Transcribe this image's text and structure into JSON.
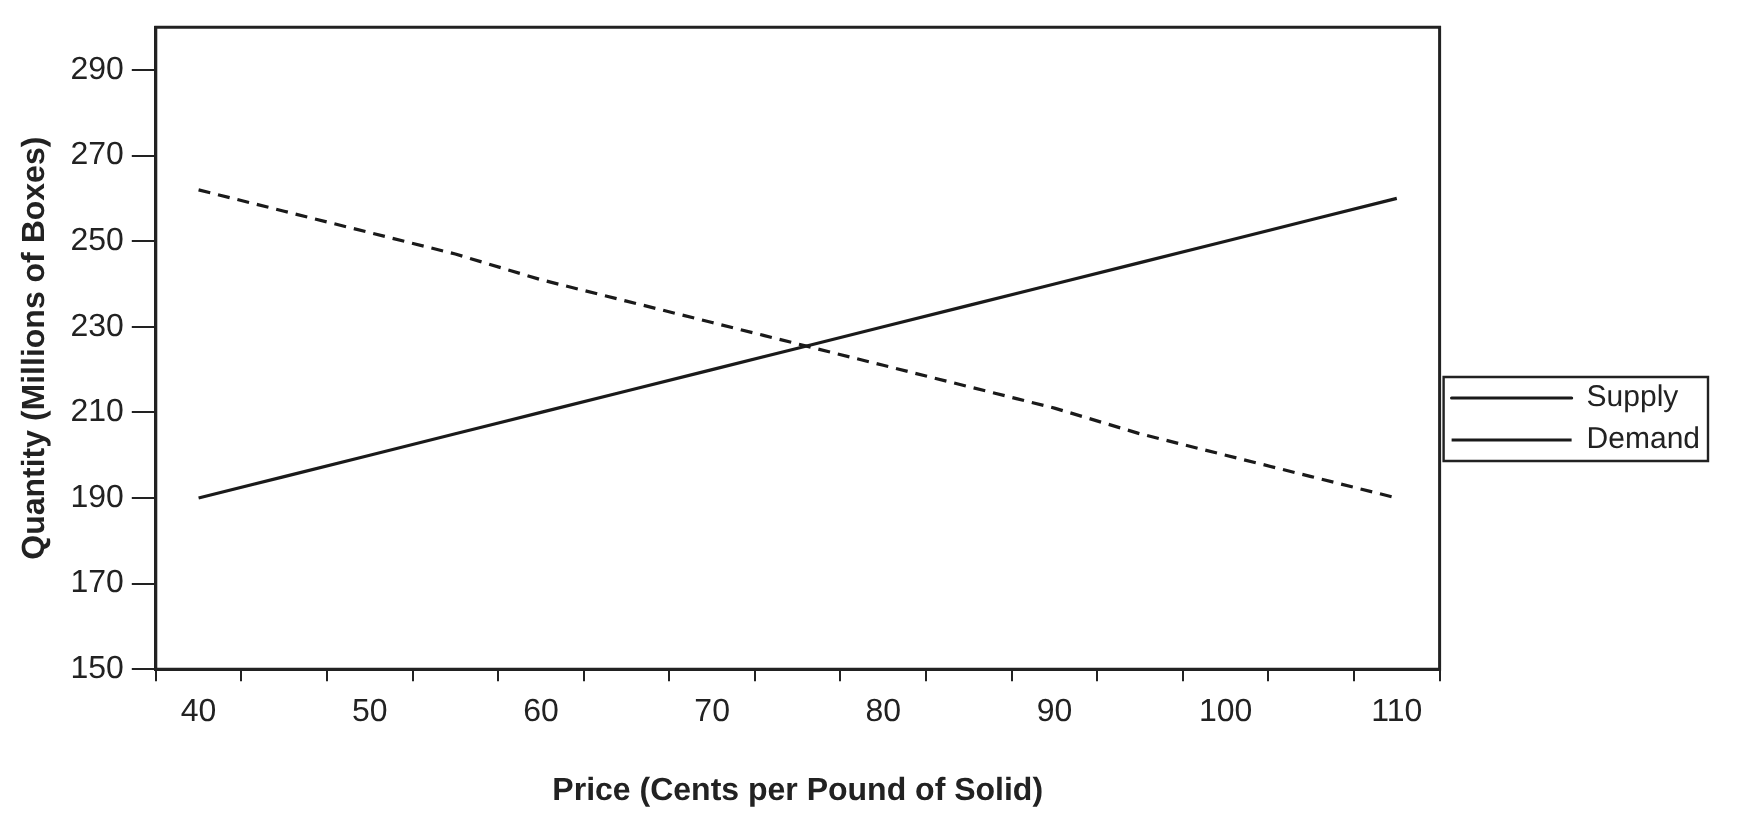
{
  "chart_data": {
    "type": "line",
    "xlabel": "Price (Cents per Pound of Solid)",
    "ylabel": "Quantity (Millions of Boxes)",
    "categories": [
      "40",
      null,
      "50",
      null,
      "60",
      null,
      "70",
      null,
      "80",
      null,
      "90",
      null,
      "100",
      null,
      "110"
    ],
    "series": [
      {
        "name": "Supply",
        "color": "#1a1a1a",
        "line_style": "solid",
        "values": [
          190,
          195,
          200,
          205,
          210,
          215,
          220,
          225,
          230,
          235,
          240,
          245,
          250,
          255,
          260
        ]
      },
      {
        "name": "Demand",
        "color": "#1a1a1a",
        "line_style": "dashed",
        "values": [
          262,
          257,
          252,
          247,
          241,
          236,
          231,
          226,
          221,
          216,
          211,
          205,
          200,
          195,
          190
        ]
      }
    ],
    "ylim": [
      150,
      300
    ],
    "yticks": [
      150,
      170,
      190,
      210,
      230,
      250,
      270,
      290
    ],
    "grid": false,
    "legend": "right",
    "marker": "none"
  }
}
